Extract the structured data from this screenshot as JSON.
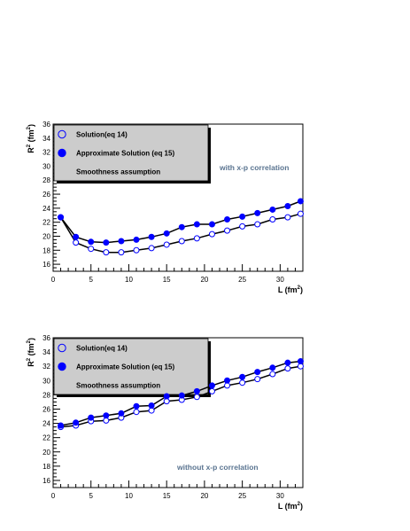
{
  "chart_data": [
    {
      "type": "line",
      "xlabel": "L (fm",
      "xlabel_sup": "2",
      "xlabel_end": ")",
      "ylabel": "R",
      "ylabel_sup1": "2",
      "ylabel_mid": " (fm",
      "ylabel_sup2": "2",
      "ylabel_end": ")",
      "xlim": [
        0,
        33
      ],
      "ylim": [
        15,
        36
      ],
      "xticks": [
        0,
        5,
        10,
        15,
        20,
        25,
        30
      ],
      "yticks": [
        16,
        18,
        20,
        22,
        24,
        26,
        28,
        30,
        32,
        34,
        36
      ],
      "annotation": "with x-p correlation",
      "legend": [
        {
          "label": "Solution(eq 14)",
          "marker": "open-circle"
        },
        {
          "label": "Approximate Solution (eq 15)",
          "marker": "filled-circle"
        },
        {
          "label": "Smoothness assumption",
          "marker": "none"
        }
      ],
      "series": [
        {
          "name": "Solution(eq 14)",
          "marker": "open",
          "x": [
            1,
            3,
            5,
            7,
            9,
            11,
            13,
            15,
            17,
            19,
            21,
            23,
            25,
            27,
            29,
            31,
            32.7
          ],
          "y": [
            22.7,
            19.1,
            18.2,
            17.7,
            17.7,
            18.0,
            18.3,
            18.8,
            19.3,
            19.7,
            20.3,
            20.8,
            21.4,
            21.7,
            22.4,
            22.7,
            23.2
          ]
        },
        {
          "name": "Approximate Solution (eq 15)",
          "marker": "filled",
          "x": [
            1,
            3,
            5,
            7,
            9,
            11,
            13,
            15,
            17,
            19,
            21,
            23,
            25,
            27,
            29,
            31,
            32.7
          ],
          "y": [
            22.7,
            19.9,
            19.2,
            19.1,
            19.3,
            19.5,
            19.9,
            20.4,
            21.3,
            21.7,
            21.7,
            22.4,
            22.8,
            23.3,
            23.8,
            24.3,
            25.0
          ]
        }
      ]
    },
    {
      "type": "line",
      "xlabel": "L (fm",
      "xlabel_sup": "2",
      "xlabel_end": ")",
      "ylabel": "R",
      "ylabel_sup1": "2",
      "ylabel_mid": " (fm",
      "ylabel_sup2": "2",
      "ylabel_end": ")",
      "xlim": [
        0,
        33
      ],
      "ylim": [
        15,
        36
      ],
      "xticks": [
        0,
        5,
        10,
        15,
        20,
        25,
        30
      ],
      "yticks": [
        16,
        18,
        20,
        22,
        24,
        26,
        28,
        30,
        32,
        34,
        36
      ],
      "annotation": "without x-p correlation",
      "legend": [
        {
          "label": "Solution(eq 14)",
          "marker": "open-circle"
        },
        {
          "label": "Approximate Solution (eq 15)",
          "marker": "filled-circle"
        },
        {
          "label": "Smoothness assumption",
          "marker": "none"
        }
      ],
      "series": [
        {
          "name": "Solution(eq 14)",
          "marker": "open",
          "x": [
            1,
            3,
            5,
            7,
            9,
            11,
            13,
            15,
            17,
            19,
            21,
            23,
            25,
            27,
            29,
            31,
            32.7
          ],
          "y": [
            23.5,
            23.7,
            24.3,
            24.4,
            24.8,
            25.6,
            25.8,
            27.1,
            27.3,
            27.7,
            28.5,
            29.3,
            29.7,
            30.2,
            30.9,
            31.7,
            32.0
          ]
        },
        {
          "name": "Approximate Solution (eq 15)",
          "marker": "filled",
          "x": [
            1,
            3,
            5,
            7,
            9,
            11,
            13,
            15,
            17,
            19,
            21,
            23,
            25,
            27,
            29,
            31,
            32.7
          ],
          "y": [
            23.7,
            24.1,
            24.8,
            25.1,
            25.4,
            26.4,
            26.5,
            27.8,
            27.9,
            28.5,
            29.3,
            30.0,
            30.5,
            31.2,
            31.8,
            32.5,
            32.7
          ]
        }
      ]
    }
  ]
}
